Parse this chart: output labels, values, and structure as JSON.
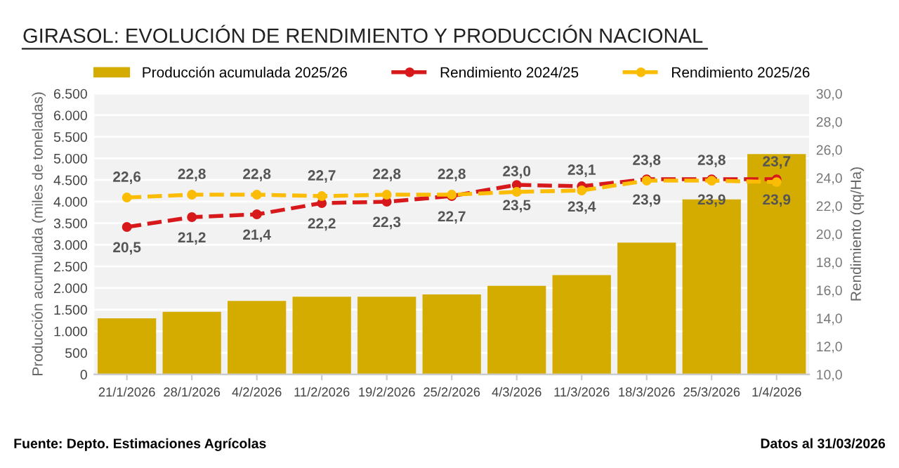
{
  "chart_data": {
    "type": "bar",
    "title": "GIRASOL: EVOLUCIÓN DE RENDIMIENTO Y PRODUCCIÓN NACIONAL",
    "categories": [
      "21/1/2026",
      "28/1/2026",
      "4/2/2026",
      "11/2/2026",
      "19/2/2026",
      "25/2/2026",
      "4/3/2026",
      "11/3/2026",
      "18/3/2026",
      "25/3/2026",
      "1/4/2026"
    ],
    "series": [
      {
        "name": "Producción acumulada 2025/26",
        "color": "#d4ac00",
        "values": [
          1300,
          1450,
          1700,
          1800,
          1800,
          1850,
          2050,
          2300,
          3050,
          4050,
          5100
        ]
      },
      {
        "name": "Rendimiento 2024/25",
        "type": "line",
        "axis": "y2",
        "color": "#d7191c",
        "marker": "circle",
        "line_style": "dashed",
        "values": [
          20.5,
          21.2,
          21.4,
          22.2,
          22.3,
          22.7,
          23.5,
          23.4,
          23.9,
          23.9,
          23.9
        ],
        "value_labels": [
          "20,5",
          "21,2",
          "21,4",
          "22,2",
          "22,3",
          "22,7",
          "23,5",
          "23,4",
          "23,9",
          "23,9",
          "23,9"
        ]
      },
      {
        "name": "Rendimiento 2025/26",
        "type": "line",
        "axis": "y2",
        "color": "#fbbc05",
        "marker": "circle",
        "line_style": "dashed",
        "values": [
          22.6,
          22.8,
          22.8,
          22.7,
          22.8,
          22.8,
          23.0,
          23.1,
          23.8,
          23.8,
          23.7
        ],
        "value_labels": [
          "22,6",
          "22,8",
          "22,8",
          "22,7",
          "22,8",
          "22,8",
          "23,0",
          "23,1",
          "23,8",
          "23,8",
          "23,7"
        ]
      }
    ],
    "ylabel": "Producción acumulada (miles de toneladas)",
    "y2label": "Rendimiento (qq/Ha)",
    "ylim": [
      0,
      6500
    ],
    "yticks": [
      {
        "value": 0,
        "label": "0"
      },
      {
        "value": 500,
        "label": "500"
      },
      {
        "value": 1000,
        "label": "1.000"
      },
      {
        "value": 1500,
        "label": "1.500"
      },
      {
        "value": 2000,
        "label": "2.000"
      },
      {
        "value": 2500,
        "label": "2.500"
      },
      {
        "value": 3000,
        "label": "3.000"
      },
      {
        "value": 3500,
        "label": "3.500"
      },
      {
        "value": 4000,
        "label": "4.000"
      },
      {
        "value": 4500,
        "label": "4.500"
      },
      {
        "value": 5000,
        "label": "5.000"
      },
      {
        "value": 5500,
        "label": "5.500"
      },
      {
        "value": 6000,
        "label": "6.000"
      },
      {
        "value": 6500,
        "label": "6.500"
      }
    ],
    "y2lim": [
      10,
      30
    ],
    "y2ticks": [
      {
        "value": 10,
        "label": "10,0"
      },
      {
        "value": 12,
        "label": "12,0"
      },
      {
        "value": 14,
        "label": "14,0"
      },
      {
        "value": 16,
        "label": "16,0"
      },
      {
        "value": 18,
        "label": "18,0"
      },
      {
        "value": 20,
        "label": "20,0"
      },
      {
        "value": 22,
        "label": "22,0"
      },
      {
        "value": 24,
        "label": "24,0"
      },
      {
        "value": 26,
        "label": "26,0"
      },
      {
        "value": 28,
        "label": "28,0"
      },
      {
        "value": 30,
        "label": "30,0"
      }
    ],
    "grid": "y",
    "legend": "top",
    "annotations": [
      "Fuente: Depto. Estimaciones Agrícolas",
      "Datos al 31/03/2026"
    ]
  }
}
